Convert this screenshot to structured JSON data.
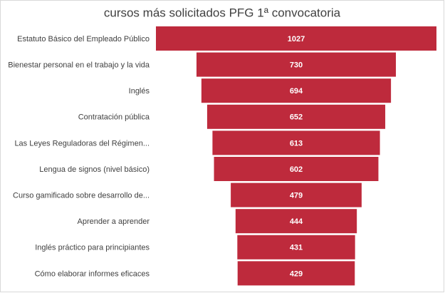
{
  "chart_data": {
    "type": "funnel",
    "title": "cursos más solicitados PFG 1ª convocatoria",
    "categories": [
      "Estatuto Básico del Empleado Público",
      "Bienestar personal en el trabajo y la vida",
      "Inglés",
      "Contratación pública",
      "Las Leyes Reguladoras del Régimen...",
      "Lengua de signos (nivel básico)",
      "Curso gamificado sobre desarrollo de...",
      "Aprender a aprender",
      "Inglés práctico para principiantes",
      "Cómo elaborar informes eficaces"
    ],
    "values": [
      1027,
      730,
      694,
      652,
      613,
      602,
      479,
      444,
      431,
      429
    ],
    "color": "#be2a3c"
  }
}
